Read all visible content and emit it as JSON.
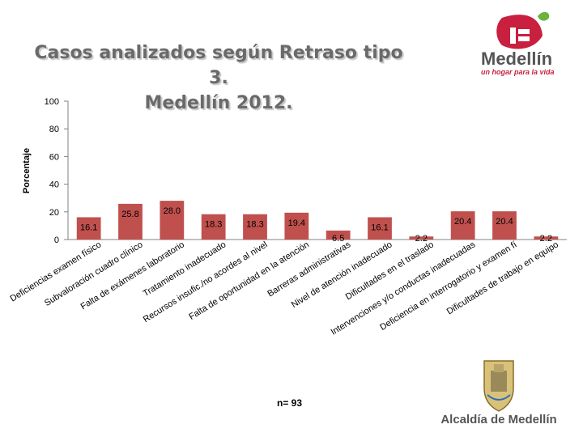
{
  "chart_data": {
    "type": "bar",
    "title": [
      "Casos analizados según Retraso tipo 3.",
      "Medellín 2012."
    ],
    "ylabel": "Porcentaje",
    "ylim": [
      0,
      100
    ],
    "yticks": [
      0,
      20,
      40,
      60,
      80,
      100
    ],
    "grid": false,
    "bar_color": "#c0504d",
    "categories": [
      "Deficiencias examen físico",
      "Subvaloración cuadro clínico",
      "Falta de exámenes laboratorio",
      "Tratamiento inadecuado",
      "Recursos insufic./no acordes al nivel",
      "Falta de oportunidad en la atención",
      "Barreras administrativas",
      "Nivel de atención inadecuado",
      "Dificultades en el traslado",
      "Intervenciones y/o conductas inadecuadas",
      "Deficiencia en interrogatorio y examen fí",
      "Dificultades de trabajo en equipo"
    ],
    "values": [
      16.1,
      25.8,
      28.0,
      18.3,
      18.3,
      19.4,
      6.5,
      16.1,
      2.2,
      20.4,
      20.4,
      2.2
    ],
    "value_labels": [
      "16.1",
      "25.8",
      "28.0",
      "18.3",
      "18.3",
      "19.4",
      "6.5",
      "16.1",
      "2.2",
      "20.4",
      "20.4",
      "2.2"
    ]
  },
  "note": "n= 93",
  "logos": {
    "medellin_name": "Medellín",
    "medellin_slogan": "un hogar para la vida",
    "alcaldia": "Alcaldía de Medellín",
    "brand_color": "#c8203e"
  }
}
